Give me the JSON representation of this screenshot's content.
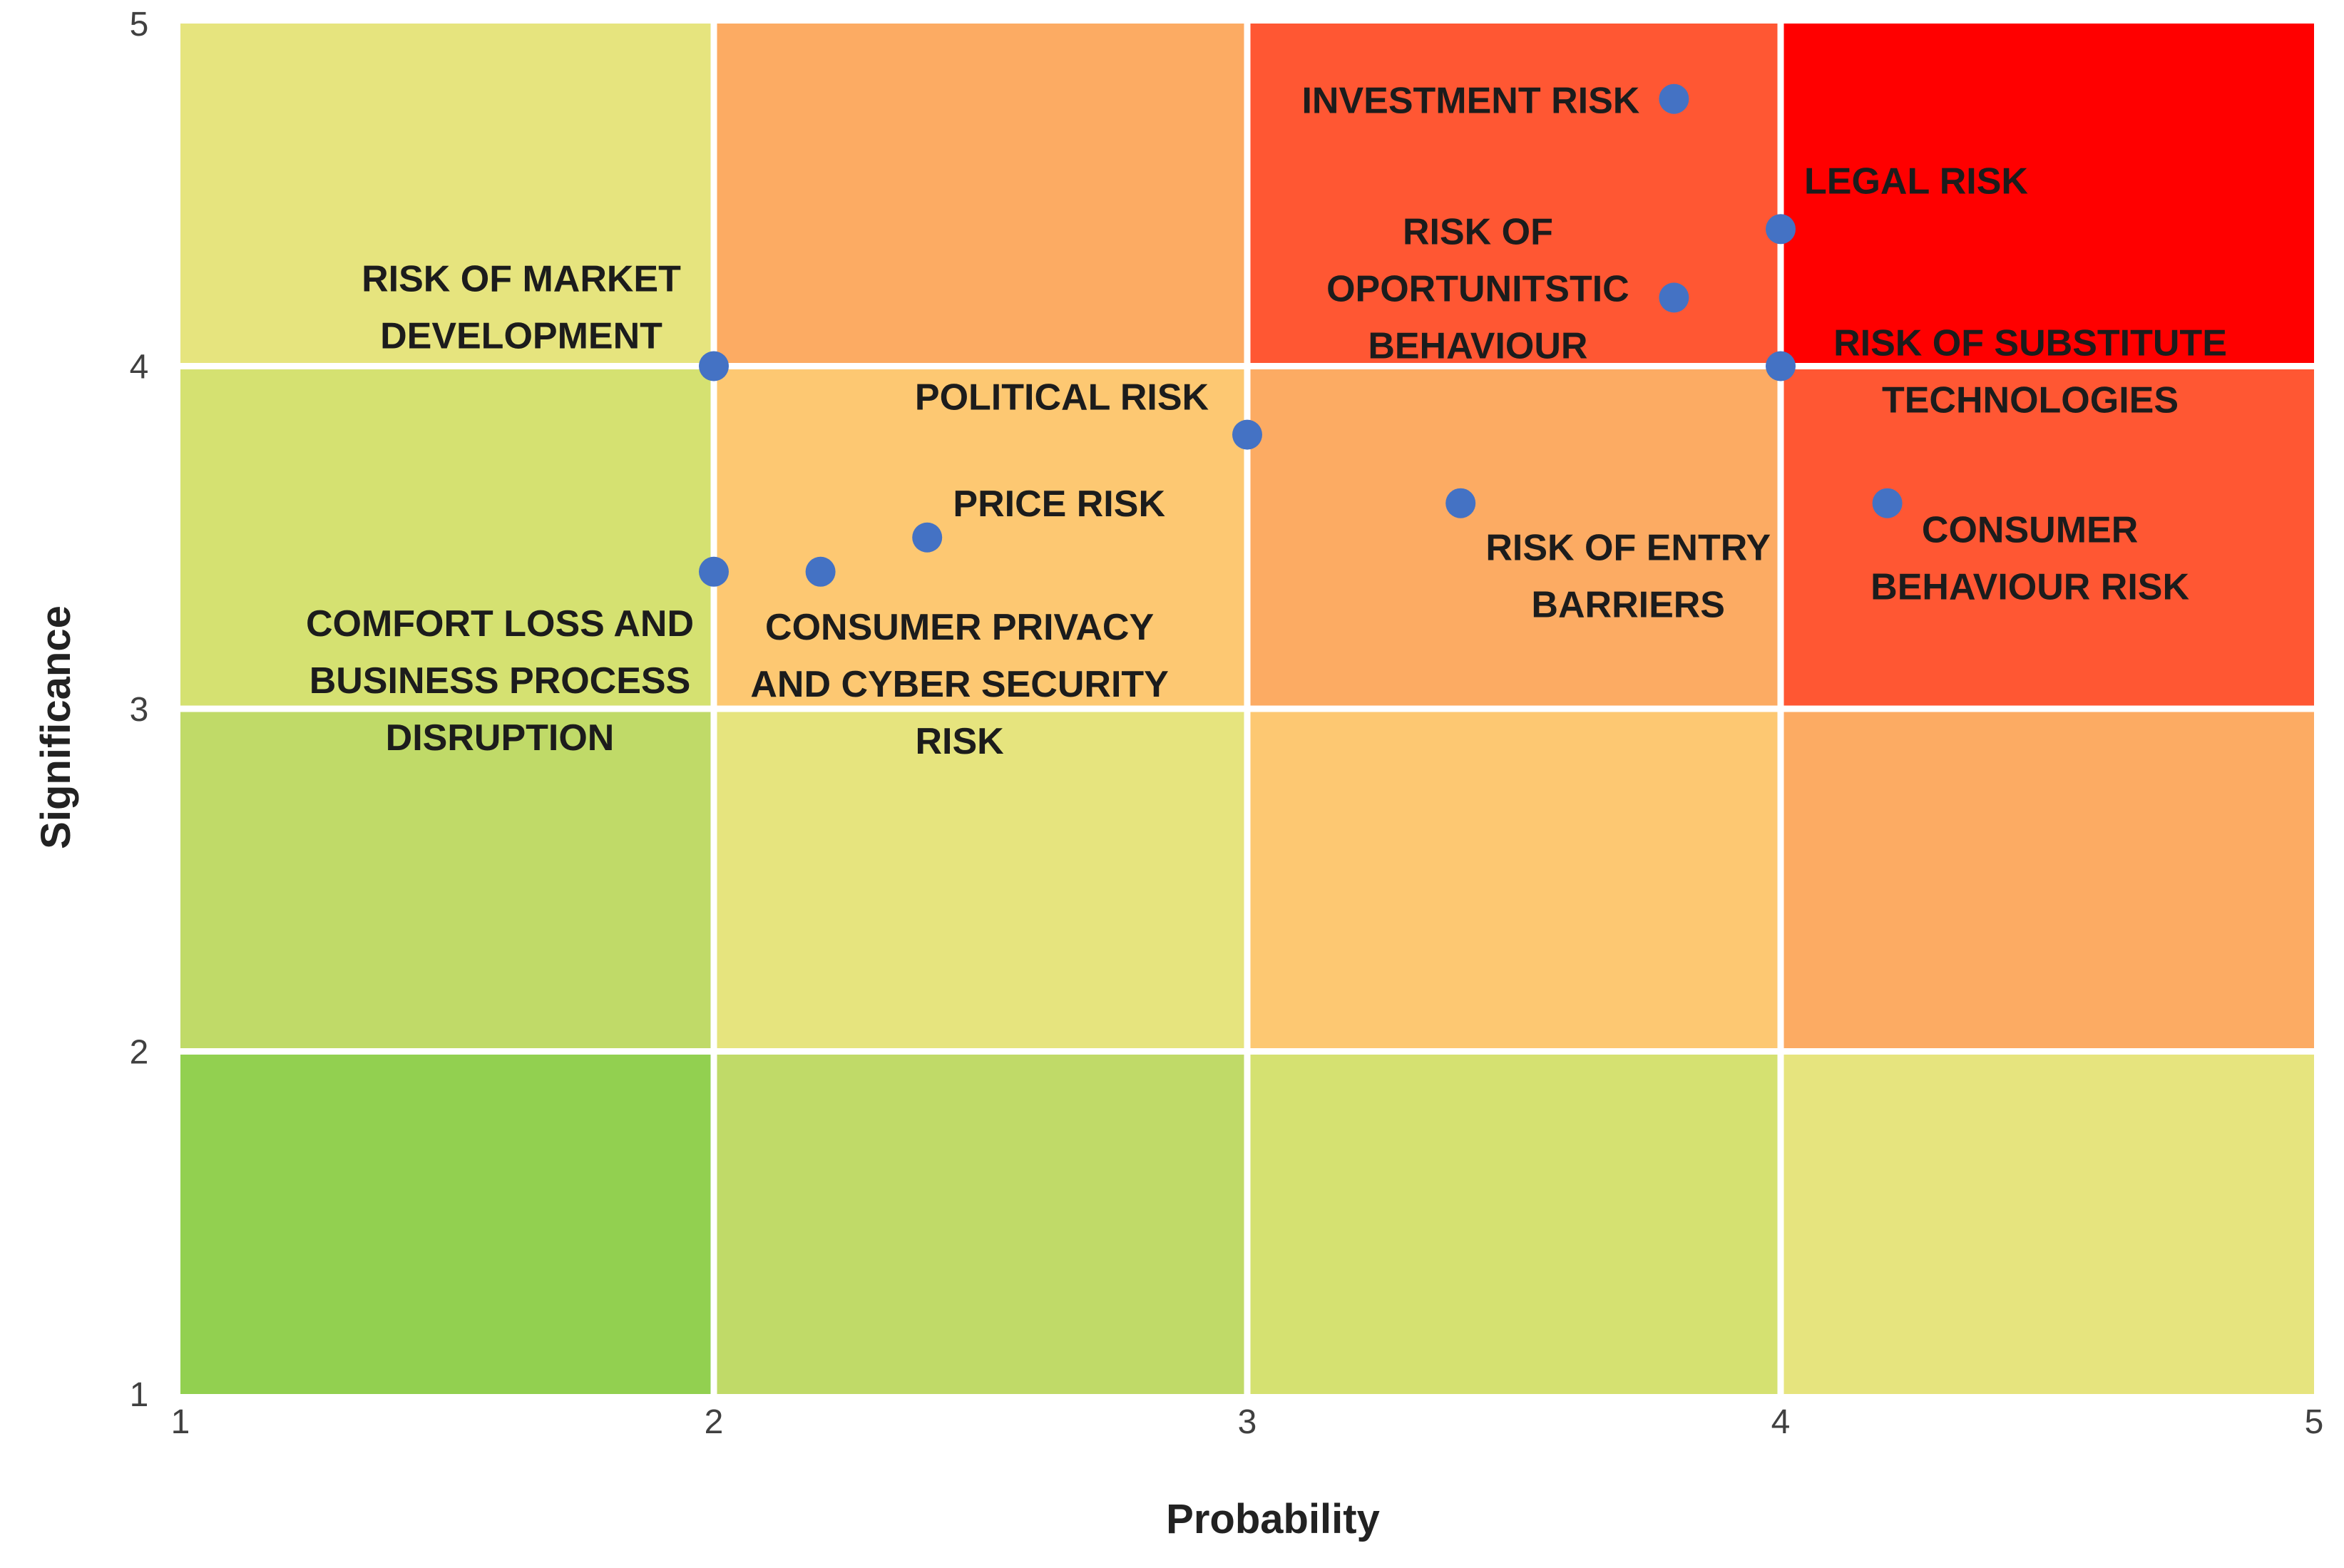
{
  "chart_data": {
    "type": "scatter",
    "xlabel": "Probability",
    "ylabel": "Significance",
    "xlim": [
      1,
      5
    ],
    "ylim": [
      1,
      5
    ],
    "xticks": [
      1,
      2,
      3,
      4,
      5
    ],
    "yticks": [
      1,
      2,
      3,
      4,
      5
    ],
    "grid": true,
    "background_zones": {
      "x_edges": [
        1,
        2,
        3,
        4,
        5
      ],
      "y_edges": [
        1,
        2,
        3,
        4,
        5
      ],
      "colors_by_row_from_bottom": [
        [
          "#92d050",
          "#c0da68",
          "#d5e171",
          "#e6e47e"
        ],
        [
          "#c0da68",
          "#e6e47e",
          "#fdc872",
          "#fcab63"
        ],
        [
          "#d5e171",
          "#fdc872",
          "#fcab63",
          "#ff5733"
        ],
        [
          "#e6e47e",
          "#fcab63",
          "#ff5733",
          "#ff0000"
        ]
      ]
    },
    "marker_color": "#4472c4",
    "points": [
      {
        "x": 3.8,
        "y": 4.78,
        "label": [
          "INVESTMENT RISK"
        ]
      },
      {
        "x": 4.0,
        "y": 4.4,
        "label": [
          "LEGAL RISK"
        ]
      },
      {
        "x": 3.8,
        "y": 4.2,
        "label": [
          "RISK OF",
          "OPORTUNITSTIC",
          "BEHAVIOUR"
        ]
      },
      {
        "x": 2.0,
        "y": 4.0,
        "label": [
          "RISK OF MARKET",
          "DEVELOPMENT"
        ]
      },
      {
        "x": 4.0,
        "y": 4.0,
        "label": [
          "RISK OF SUBSTITUTE",
          "TECHNOLOGIES"
        ]
      },
      {
        "x": 3.0,
        "y": 3.8,
        "label": [
          "POLITICAL RISK"
        ]
      },
      {
        "x": 3.4,
        "y": 3.6,
        "label": [
          "RISK OF ENTRY",
          "BARRIERS"
        ]
      },
      {
        "x": 4.2,
        "y": 3.6,
        "label": [
          "CONSUMER",
          "BEHAVIOUR RISK"
        ]
      },
      {
        "x": 2.4,
        "y": 3.5,
        "label": [
          "PRICE RISK"
        ]
      },
      {
        "x": 2.0,
        "y": 3.4,
        "label": [
          "COMFORT LOSS AND",
          "BUSINESS PROCESS",
          "DISRUPTION"
        ]
      },
      {
        "x": 2.2,
        "y": 3.4,
        "label": [
          "CONSUMER PRIVACY",
          "AND CYBER SECURITY",
          "RISK"
        ]
      }
    ]
  }
}
